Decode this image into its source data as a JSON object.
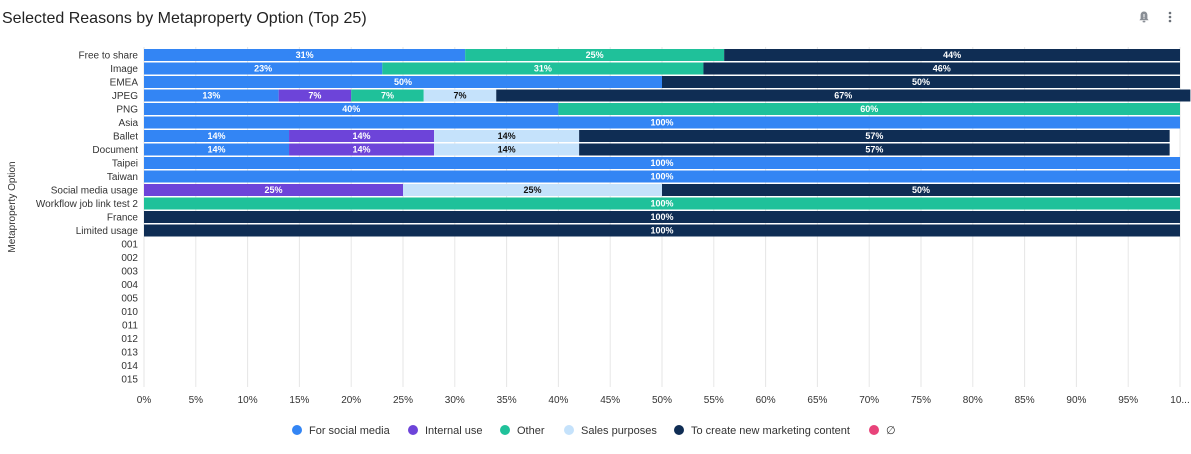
{
  "title": "Selected Reasons by Metaproperty Option (Top 25)",
  "toolbar": {
    "alert_icon": "bell-alert-icon",
    "menu_icon": "more-vertical-icon"
  },
  "chart_data": {
    "type": "bar",
    "orientation": "horizontal",
    "stacked": "percent",
    "ylabel": "Metaproperty Option",
    "xlim": [
      0,
      100
    ],
    "x_ticks": [
      "0%",
      "5%",
      "10%",
      "15%",
      "20%",
      "25%",
      "30%",
      "35%",
      "40%",
      "45%",
      "50%",
      "55%",
      "60%",
      "65%",
      "70%",
      "75%",
      "80%",
      "85%",
      "90%",
      "95%",
      "10..."
    ],
    "grid": true,
    "legend_position": "bottom",
    "categories": [
      "Free to share",
      "Image",
      "EMEA",
      "JPEG",
      "PNG",
      "Asia",
      "Ballet",
      "Document",
      "Taipei",
      "Taiwan",
      "Social media usage",
      "Workflow job link test 2",
      "France",
      "Limited usage",
      "001",
      "002",
      "003",
      "004",
      "005",
      "010",
      "011",
      "012",
      "013",
      "014",
      "015"
    ],
    "series": [
      {
        "name": "For social media",
        "color": "#3385f4",
        "label_color": "#ffffff",
        "values": [
          31,
          23,
          50,
          13,
          40,
          100,
          14,
          14,
          100,
          100,
          0,
          0,
          0,
          0,
          0,
          0,
          0,
          0,
          0,
          0,
          0,
          0,
          0,
          0,
          0
        ]
      },
      {
        "name": "Internal use",
        "color": "#6d44d9",
        "label_color": "#ffffff",
        "values": [
          0,
          0,
          0,
          7,
          0,
          0,
          14,
          14,
          0,
          0,
          25,
          0,
          0,
          0,
          0,
          0,
          0,
          0,
          0,
          0,
          0,
          0,
          0,
          0,
          0
        ]
      },
      {
        "name": "Other",
        "color": "#1fc19a",
        "label_color": "#ffffff",
        "values": [
          25,
          31,
          0,
          7,
          60,
          0,
          0,
          0,
          0,
          0,
          0,
          100,
          0,
          0,
          0,
          0,
          0,
          0,
          0,
          0,
          0,
          0,
          0,
          0,
          0
        ]
      },
      {
        "name": "Sales purposes",
        "color": "#c5e2fb",
        "label_color": "#111111",
        "values": [
          0,
          0,
          0,
          7,
          0,
          0,
          14,
          14,
          0,
          0,
          25,
          0,
          0,
          0,
          0,
          0,
          0,
          0,
          0,
          0,
          0,
          0,
          0,
          0,
          0
        ]
      },
      {
        "name": "To create new marketing content",
        "color": "#0f2d54",
        "label_color": "#ffffff",
        "values": [
          44,
          46,
          50,
          67,
          0,
          0,
          57,
          57,
          0,
          0,
          50,
          0,
          100,
          100,
          0,
          0,
          0,
          0,
          0,
          0,
          0,
          0,
          0,
          0,
          0
        ]
      },
      {
        "name": "∅",
        "color": "#e8437a",
        "label_color": "#ffffff",
        "values": [
          0,
          0,
          0,
          0,
          0,
          0,
          0,
          0,
          0,
          0,
          0,
          0,
          0,
          0,
          0,
          0,
          0,
          0,
          0,
          0,
          0,
          0,
          0,
          0,
          0
        ]
      }
    ]
  }
}
